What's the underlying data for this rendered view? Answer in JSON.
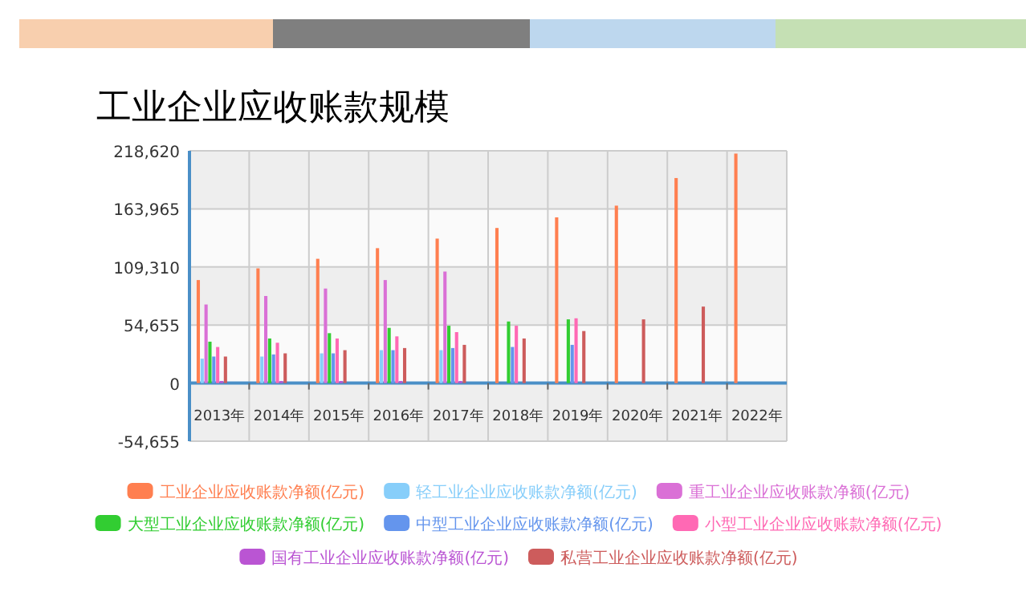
{
  "chart_data": {
    "type": "bar",
    "title": "工业企业应收账款规模",
    "categories": [
      "2013年",
      "2014年",
      "2015年",
      "2016年",
      "2017年",
      "2018年",
      "2019年",
      "2020年",
      "2021年",
      "2022年"
    ],
    "series": [
      {
        "name": "工业企业应收账款净额(亿元)",
        "color": "#ff7f50",
        "values": [
          97000,
          108000,
          117000,
          127000,
          136000,
          146000,
          156000,
          167000,
          193000,
          216000
        ]
      },
      {
        "name": "轻工业企业应收账款净额(亿元)",
        "color": "#87cefa",
        "values": [
          23000,
          25000,
          28000,
          31000,
          31000,
          null,
          null,
          null,
          null,
          null
        ]
      },
      {
        "name": "重工业企业应收账款净额(亿元)",
        "color": "#da70d6",
        "values": [
          74000,
          82000,
          89000,
          97000,
          105000,
          null,
          null,
          null,
          null,
          null
        ]
      },
      {
        "name": "大型工业企业应收账款净额(亿元)",
        "color": "#32cd32",
        "values": [
          39000,
          42000,
          47000,
          52000,
          54000,
          58000,
          60000,
          null,
          null,
          null
        ]
      },
      {
        "name": "中型工业企业应收账款净额(亿元)",
        "color": "#6495ed",
        "values": [
          25000,
          27000,
          28000,
          31000,
          33000,
          34000,
          36000,
          null,
          null,
          null
        ]
      },
      {
        "name": "小型工业企业应收账款净额(亿元)",
        "color": "#ff69b4",
        "values": [
          34000,
          38000,
          42000,
          44000,
          48000,
          54000,
          61000,
          null,
          null,
          null
        ]
      },
      {
        "name": "国有工业企业应收账款净额(亿元)",
        "color": "#ba55d3",
        "values": [
          2000,
          2000,
          2000,
          2000,
          2000,
          null,
          null,
          null,
          null,
          null
        ]
      },
      {
        "name": "私营工业企业应收账款净额(亿元)",
        "color": "#cd5c5c",
        "values": [
          25000,
          28000,
          31000,
          33000,
          36000,
          42000,
          49000,
          60000,
          72000,
          null
        ]
      }
    ],
    "ylim": [
      -54655,
      218620
    ],
    "yticks": [
      {
        "value": -54655,
        "label": "-54,655"
      },
      {
        "value": 0,
        "label": "0"
      },
      {
        "value": 54655,
        "label": "54,655"
      },
      {
        "value": 109310,
        "label": "109,310"
      },
      {
        "value": 163965,
        "label": "163,965"
      },
      {
        "value": 218620,
        "label": "218,620"
      }
    ],
    "ref_lines": [
      {
        "axis": "y",
        "value": 0,
        "color": "#4a8fc7"
      }
    ],
    "grid": true,
    "legend": "bottom"
  }
}
